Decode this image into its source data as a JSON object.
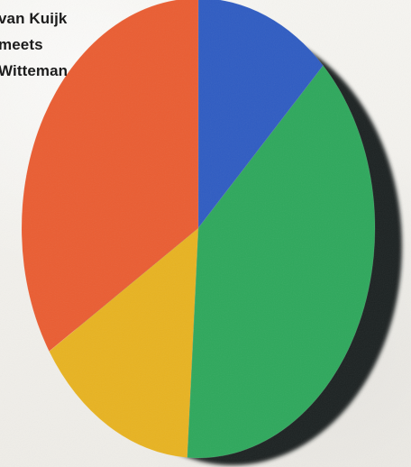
{
  "caption": {
    "lines": [
      "van Kuijk",
      "meets",
      "Witteman"
    ]
  },
  "chart_data": {
    "type": "pie",
    "title": "",
    "subtitle": "",
    "slices": [
      {
        "value": 12.5,
        "color": "#2f5cc2"
      },
      {
        "value": 38.5,
        "color": "#2ea85c"
      },
      {
        "value": 15.0,
        "color": "#e8b321"
      },
      {
        "value": 34.0,
        "color": "#ea5d32"
      }
    ],
    "shadow": "#1d2420",
    "start_angle_deg": -90
  }
}
